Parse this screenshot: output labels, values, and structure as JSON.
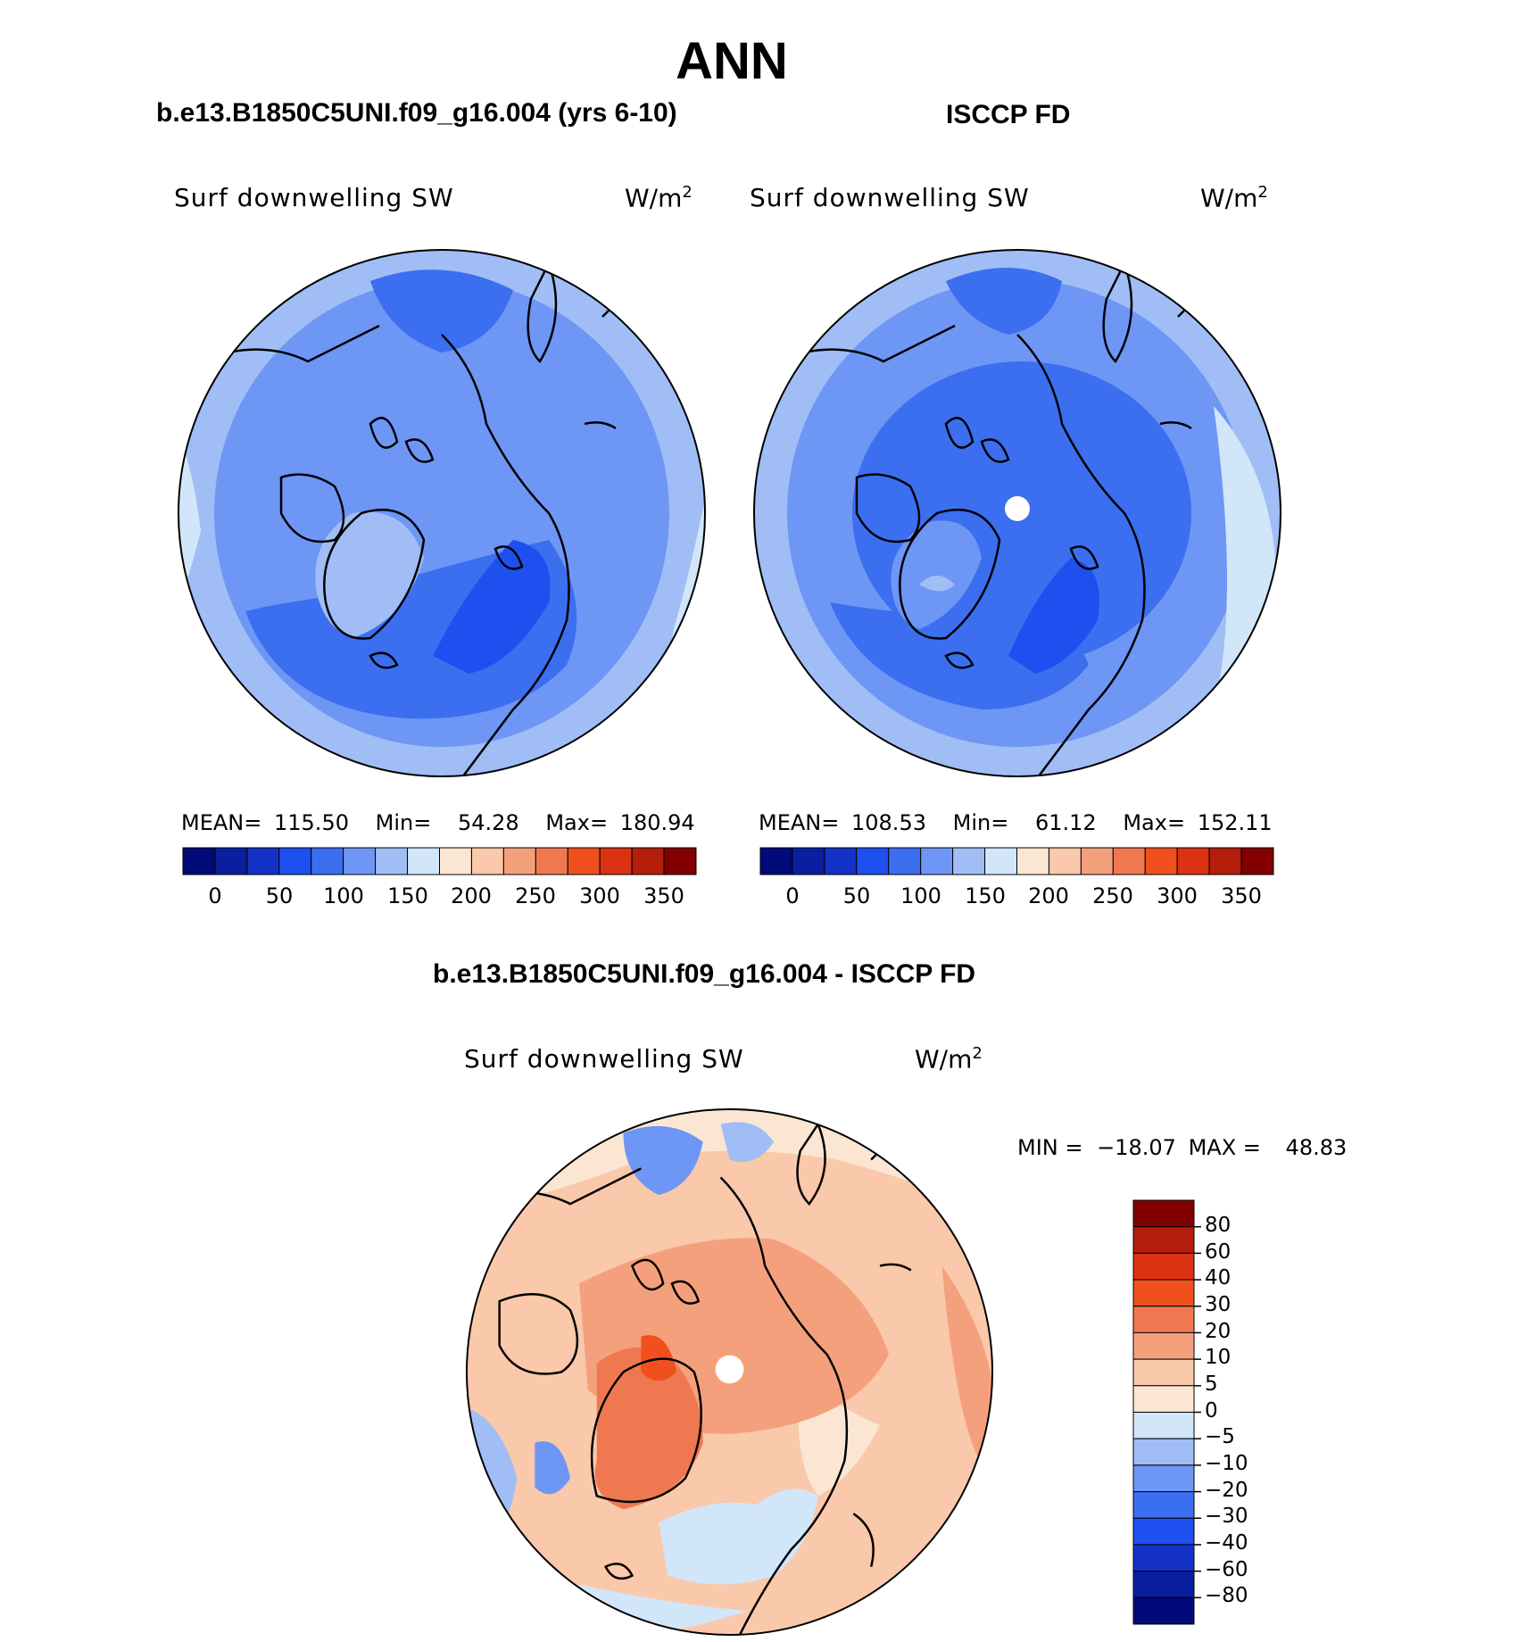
{
  "title": "ANN",
  "panels": [
    {
      "title": "b.e13.B1850C5UNI.f09_g16.004 (yrs 6-10)",
      "variable": "Surf downwelling SW",
      "units": "W/m",
      "units_exp": "2",
      "stats": {
        "mean_label": "MEAN=",
        "mean": "115.50",
        "min_label": "Min=",
        "min": "54.28",
        "max_label": "Max=",
        "max": "180.94"
      }
    },
    {
      "title": "ISCCP FD",
      "variable": "Surf downwelling SW",
      "units": "W/m",
      "units_exp": "2",
      "stats": {
        "mean_label": "MEAN=",
        "mean": "108.53",
        "min_label": "Min=",
        "min": "61.12",
        "max_label": "Max=",
        "max": "152.11"
      }
    }
  ],
  "diff_panel": {
    "title": "b.e13.B1850C5UNI.f09_g16.004 - ISCCP FD",
    "variable": "Surf downwelling SW",
    "units": "W/m",
    "units_exp": "2",
    "minmax": {
      "min_label": "MIN =",
      "min": "−18.07",
      "max_label": "MAX =",
      "max": "48.83"
    }
  },
  "chart_data": [
    {
      "type": "heatmap",
      "projection": "north polar stereographic",
      "title": "b.e13.B1850C5UNI.f09_g16.004 (yrs 6-10)",
      "variable": "Surf downwelling SW",
      "units": "W/m2",
      "mean": 115.5,
      "min": 54.28,
      "max": 180.94,
      "colorbar_ticks": [
        0,
        50,
        100,
        150,
        200,
        250,
        300,
        350
      ],
      "colorbar_labels": [
        "0",
        "50",
        "100",
        "150",
        "200",
        "250",
        "300",
        "350"
      ]
    },
    {
      "type": "heatmap",
      "projection": "north polar stereographic",
      "title": "ISCCP FD",
      "variable": "Surf downwelling SW",
      "units": "W/m2",
      "mean": 108.53,
      "min": 61.12,
      "max": 152.11,
      "colorbar_ticks": [
        0,
        50,
        100,
        150,
        200,
        250,
        300,
        350
      ],
      "colorbar_labels": [
        "0",
        "50",
        "100",
        "150",
        "200",
        "250",
        "300",
        "350"
      ]
    },
    {
      "type": "heatmap",
      "projection": "north polar stereographic",
      "title": "b.e13.B1850C5UNI.f09_g16.004 - ISCCP FD",
      "variable": "Surf downwelling SW",
      "units": "W/m2",
      "min": -18.07,
      "max": 48.83,
      "colorbar_levels": [
        80,
        60,
        40,
        30,
        20,
        10,
        5,
        0,
        -5,
        -10,
        -20,
        -30,
        -40,
        -60,
        -80
      ],
      "colorbar_labels": [
        "80",
        "60",
        "40",
        "30",
        "20",
        "10",
        "5",
        "0",
        "−5",
        "−10",
        "−20",
        "−30",
        "−40",
        "−60",
        "−80"
      ]
    }
  ],
  "colors": {
    "seq_scale": [
      "#000a78",
      "#0a1ea0",
      "#1432c8",
      "#1e50f0",
      "#3c6ef0",
      "#6e96f5",
      "#a0bef5",
      "#d2e6fa",
      "#fae6d2",
      "#fac8aa",
      "#f5a07d",
      "#f07850",
      "#f0501e",
      "#dc3214",
      "#b41e0a",
      "#820000"
    ],
    "diff_scale_top_to_bottom": [
      "#820000",
      "#b41e0a",
      "#dc3214",
      "#f0501e",
      "#f07850",
      "#f5a07d",
      "#fac8aa",
      "#fae6d2",
      "#d2e6fa",
      "#a0bef5",
      "#6e96f5",
      "#3c6ef0",
      "#1e50f0",
      "#1432c8",
      "#0a1ea0",
      "#000a78"
    ]
  }
}
